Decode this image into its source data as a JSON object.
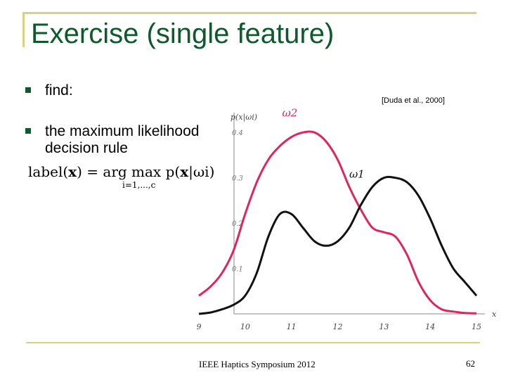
{
  "slide": {
    "title": "Exercise (single feature)",
    "bullets": [
      {
        "text": "find:"
      },
      {
        "text": "the maximum likelihood decision rule"
      }
    ],
    "citation": "[Duda et al., 2000]",
    "formula": {
      "lhs_label": "label",
      "lhs_arg": "x",
      "eq": "= arg",
      "max": "max",
      "sub": "i=1,...,c",
      "rhs_p": "p(",
      "rhs_x": "x",
      "rhs_rest": "|ωi)"
    },
    "footer": "IEEE Haptics Symposium 2012",
    "page_number": "62"
  },
  "chart_data": {
    "type": "line",
    "ylabel": "p(x|ωi)",
    "xlabel": "x",
    "xlim": [
      9,
      15
    ],
    "ylim": [
      0,
      0.45
    ],
    "x_ticks": [
      9,
      10,
      11,
      12,
      13,
      14,
      15
    ],
    "y_ticks": [
      0.1,
      0.2,
      0.3,
      0.4
    ],
    "series": [
      {
        "name": "ω2",
        "color": "#e0245c",
        "x": [
          9,
          9.25,
          9.5,
          9.75,
          10,
          10.25,
          10.5,
          10.75,
          11,
          11.25,
          11.5,
          11.75,
          12,
          12.25,
          12.5,
          12.75,
          13,
          13.25,
          13.5,
          13.75,
          14,
          14.25,
          14.5,
          14.75,
          15
        ],
        "values": [
          0.04,
          0.06,
          0.09,
          0.14,
          0.22,
          0.29,
          0.34,
          0.37,
          0.39,
          0.4,
          0.4,
          0.38,
          0.34,
          0.28,
          0.23,
          0.19,
          0.18,
          0.17,
          0.13,
          0.07,
          0.03,
          0.01,
          0.005,
          0.002,
          0.001
        ]
      },
      {
        "name": "ω1",
        "color": "#111111",
        "x": [
          9,
          9.25,
          9.5,
          9.75,
          10,
          10.25,
          10.5,
          10.75,
          11,
          11.25,
          11.5,
          11.75,
          12,
          12.25,
          12.5,
          12.75,
          13,
          13.25,
          13.5,
          13.75,
          14,
          14.25,
          14.5,
          14.75,
          15
        ],
        "values": [
          0.0,
          0.003,
          0.01,
          0.02,
          0.04,
          0.09,
          0.17,
          0.22,
          0.22,
          0.19,
          0.16,
          0.15,
          0.16,
          0.19,
          0.24,
          0.28,
          0.3,
          0.3,
          0.29,
          0.26,
          0.21,
          0.15,
          0.1,
          0.07,
          0.04
        ]
      }
    ]
  }
}
